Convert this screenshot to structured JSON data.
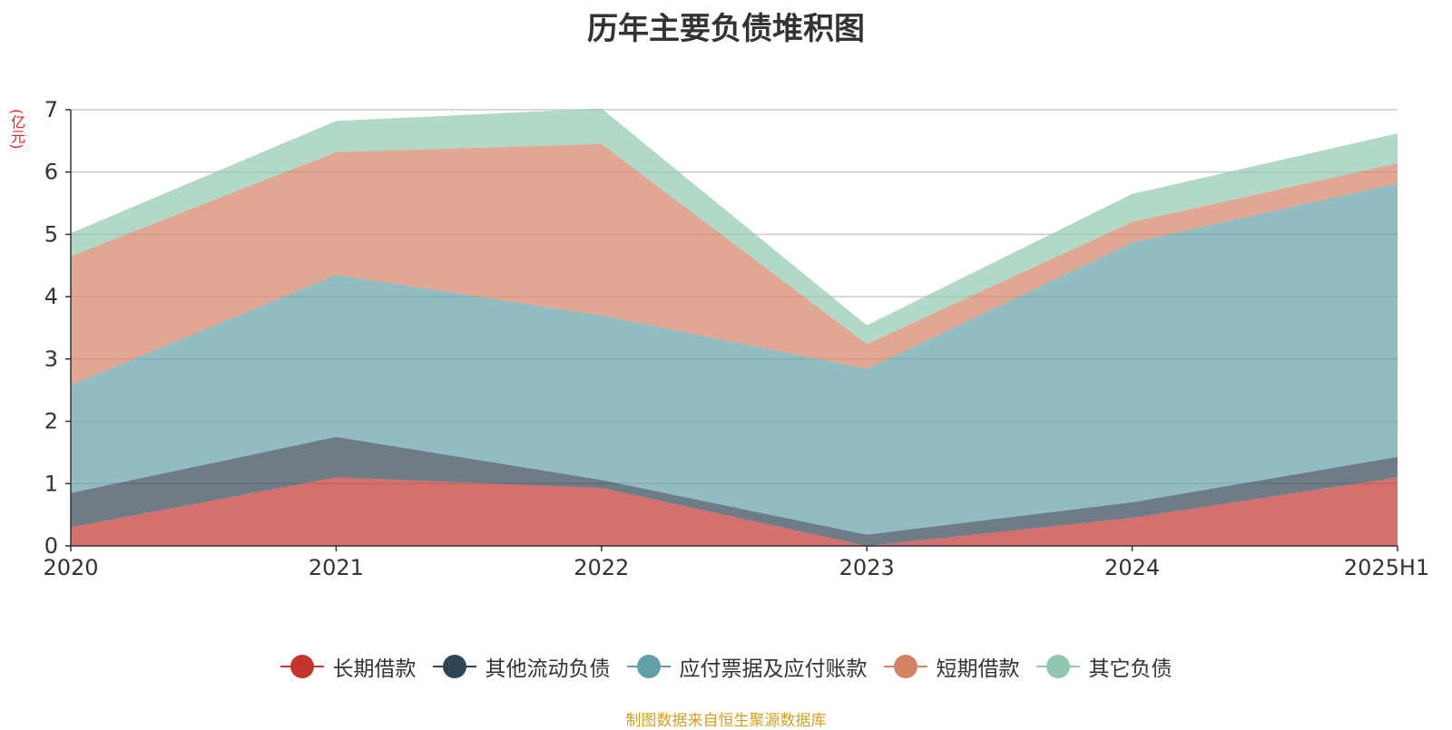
{
  "chart_data": {
    "type": "area",
    "stacked": true,
    "title": "历年主要负债堆积图",
    "unit_label": "(亿元)",
    "source": "制图数据来自恒生聚源数据库",
    "categories": [
      "2020",
      "2021",
      "2022",
      "2023",
      "2024",
      "2025H1"
    ],
    "ylim": [
      0,
      7
    ],
    "yticks": [
      "0",
      "1",
      "2",
      "3",
      "4",
      "5",
      "6",
      "7"
    ],
    "grid": true,
    "legend_position": "bottom",
    "series": [
      {
        "name": "长期借款",
        "color": "#c23531",
        "values": [
          0.3,
          1.1,
          0.93,
          0.0,
          0.45,
          1.1
        ]
      },
      {
        "name": "其他流动负债",
        "color": "#2f4554",
        "values": [
          0.55,
          0.65,
          0.13,
          0.18,
          0.25,
          0.33
        ]
      },
      {
        "name": "应付票据及应付账款",
        "color": "#61a0a8",
        "values": [
          1.73,
          2.6,
          2.64,
          2.66,
          4.17,
          4.39
        ]
      },
      {
        "name": "短期借款",
        "color": "#d48265",
        "values": [
          2.07,
          1.97,
          2.75,
          0.4,
          0.33,
          0.32
        ]
      },
      {
        "name": "其它负债",
        "color": "#91c7ae",
        "values": [
          0.37,
          0.5,
          0.57,
          0.3,
          0.45,
          0.48
        ]
      }
    ]
  }
}
